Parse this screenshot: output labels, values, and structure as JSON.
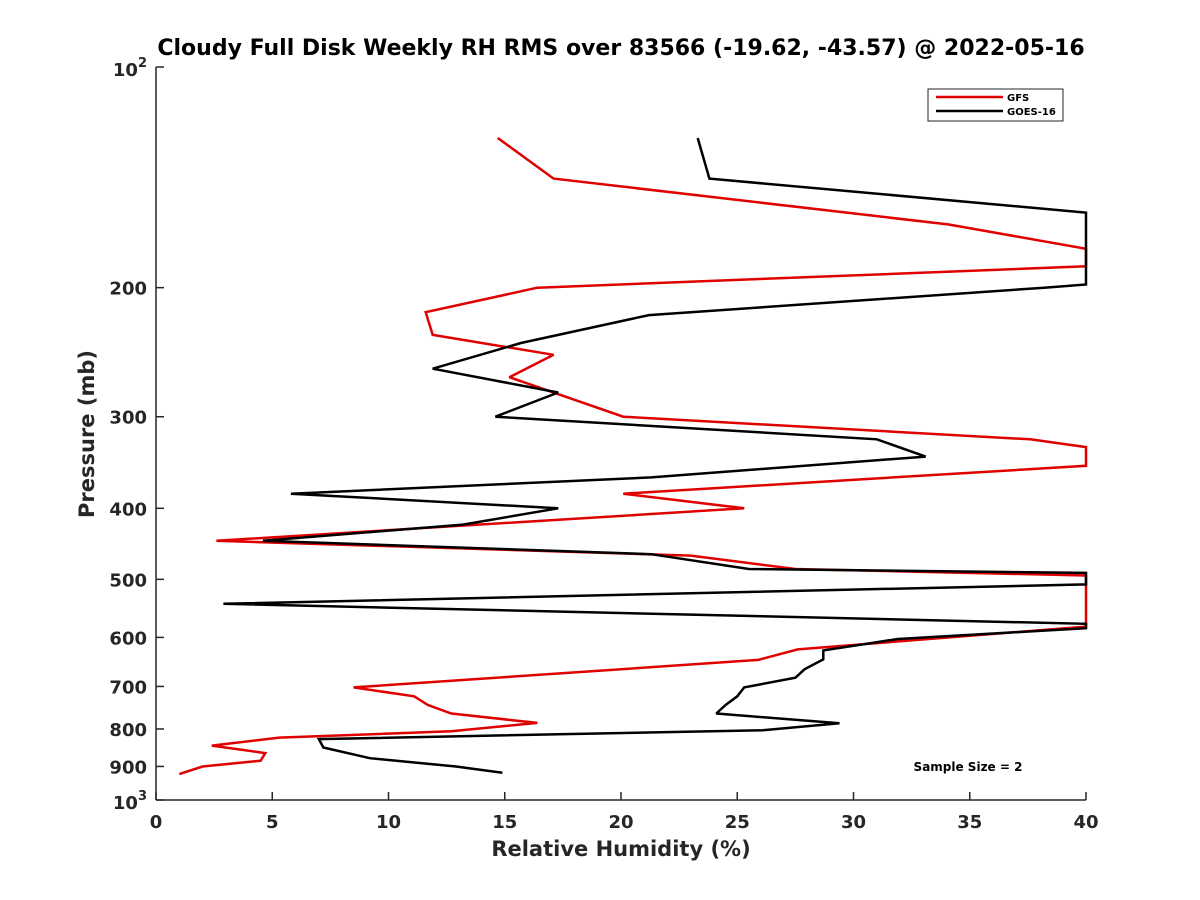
{
  "chart_data": {
    "type": "line",
    "title": "Cloudy Full Disk Weekly RH RMS over 83566 (-19.62, -43.57) @ 2022-05-16",
    "xlabel": "Relative Humidity (%)",
    "ylabel": "Pressure (mb)",
    "xlim": [
      0,
      40
    ],
    "ylim": [
      100,
      1000
    ],
    "yscale": "log",
    "y_reversed": true,
    "grid": false,
    "legend_position": "top-right",
    "x_ticks": [
      "0",
      "5",
      "10",
      "15",
      "20",
      "25",
      "30",
      "35",
      "40"
    ],
    "y_ticks": [
      {
        "value": 100,
        "base": "10",
        "exp": "2"
      },
      {
        "value": 200,
        "label": "200"
      },
      {
        "value": 300,
        "label": "300"
      },
      {
        "value": 400,
        "label": "400"
      },
      {
        "value": 500,
        "label": "500"
      },
      {
        "value": 600,
        "label": "600"
      },
      {
        "value": 700,
        "label": "700"
      },
      {
        "value": 800,
        "label": "800"
      },
      {
        "value": 900,
        "label": "900"
      },
      {
        "value": 1000,
        "base": "10",
        "exp": "3"
      }
    ],
    "annotation": "Sample Size = 2",
    "series": [
      {
        "name": "GFS",
        "color": "#e00000",
        "points": [
          [
            14.7,
            125
          ],
          [
            17.1,
            142
          ],
          [
            34.1,
            164
          ],
          [
            40.0,
            177
          ],
          [
            40.0,
            187
          ],
          [
            16.4,
            200
          ],
          [
            11.6,
            216
          ],
          [
            11.9,
            232
          ],
          [
            17.1,
            247
          ],
          [
            15.2,
            265
          ],
          [
            20.1,
            300
          ],
          [
            37.6,
            322
          ],
          [
            40.0,
            330
          ],
          [
            40.0,
            350
          ],
          [
            20.1,
            382
          ],
          [
            25.3,
            400
          ],
          [
            2.6,
            443
          ],
          [
            23.0,
            464
          ],
          [
            27.5,
            484
          ],
          [
            40.0,
            494
          ],
          [
            40.0,
            580
          ],
          [
            27.6,
            623
          ],
          [
            25.9,
            644
          ],
          [
            8.5,
            702
          ],
          [
            11.1,
            722
          ],
          [
            11.7,
            742
          ],
          [
            12.7,
            762
          ],
          [
            16.4,
            785
          ],
          [
            12.7,
            806
          ],
          [
            5.3,
            822
          ],
          [
            2.4,
            843
          ],
          [
            4.7,
            863
          ],
          [
            4.5,
            884
          ],
          [
            2.0,
            900
          ],
          [
            1.0,
            922
          ]
        ]
      },
      {
        "name": "GOES-16",
        "color": "#000000",
        "points": [
          [
            23.3,
            125
          ],
          [
            23.8,
            142
          ],
          [
            40.0,
            158
          ],
          [
            40.0,
            158
          ],
          [
            40.0,
            198
          ],
          [
            38.2,
            200
          ],
          [
            21.2,
            218
          ],
          [
            15.7,
            238
          ],
          [
            11.9,
            258
          ],
          [
            17.3,
            278
          ],
          [
            14.6,
            300
          ],
          [
            31.0,
            322
          ],
          [
            33.1,
            340
          ],
          [
            21.3,
            363
          ],
          [
            5.8,
            382
          ],
          [
            17.3,
            400
          ],
          [
            13.2,
            421
          ],
          [
            4.6,
            443
          ],
          [
            21.3,
            462
          ],
          [
            25.5,
            484
          ],
          [
            40.0,
            490
          ],
          [
            40.0,
            508
          ],
          [
            2.9,
            540
          ],
          [
            40.0,
            575
          ],
          [
            40.0,
            583
          ],
          [
            31.9,
            603
          ],
          [
            28.7,
            625
          ],
          [
            28.7,
            643
          ],
          [
            27.9,
            663
          ],
          [
            27.5,
            681
          ],
          [
            25.3,
            702
          ],
          [
            25.0,
            722
          ],
          [
            24.5,
            742
          ],
          [
            24.1,
            762
          ],
          [
            29.4,
            786
          ],
          [
            26.1,
            803
          ],
          [
            7.0,
            826
          ],
          [
            7.2,
            848
          ],
          [
            9.2,
            877
          ],
          [
            12.9,
            900
          ],
          [
            14.9,
            918
          ]
        ]
      }
    ]
  }
}
